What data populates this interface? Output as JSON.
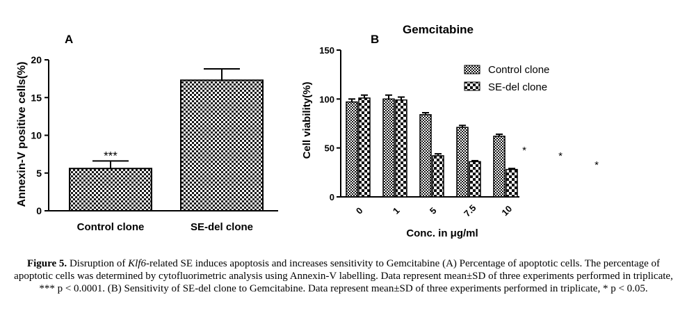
{
  "chart_data": [
    {
      "type": "bar",
      "panel_label": "A",
      "title": "",
      "categories": [
        "Control clone",
        "SE-del clone"
      ],
      "values": [
        5.6,
        17.3
      ],
      "errors": [
        1.0,
        1.5
      ],
      "annotations": [
        {
          "category": "Control clone",
          "text": "***"
        }
      ],
      "xlabel": "",
      "ylabel": "Annexin-V positive cells(%)",
      "ylim": [
        0,
        20
      ],
      "yticks": [
        0,
        5,
        10,
        15,
        20
      ],
      "grid": false,
      "legend": "none"
    },
    {
      "type": "bar",
      "panel_label": "B",
      "title": "Gemcitabine",
      "categories": [
        "0",
        "1",
        "5",
        "7.5",
        "10"
      ],
      "series": [
        {
          "name": "Control clone",
          "values": [
            97,
            100,
            84,
            71,
            62
          ],
          "errors": [
            3,
            4,
            2,
            2,
            2
          ]
        },
        {
          "name": "SE-del clone",
          "values": [
            101,
            99,
            42,
            36,
            28
          ],
          "errors": [
            3,
            3,
            2,
            1,
            1
          ]
        }
      ],
      "annotations": [
        "*",
        "*",
        "*"
      ],
      "xlabel": "Conc. in μg/ml",
      "ylabel": "Cell viability(%)",
      "ylim": [
        0,
        150
      ],
      "yticks": [
        0,
        50,
        100,
        150
      ],
      "grid": false,
      "legend": "top-right"
    }
  ],
  "caption": {
    "fig_label": "Figure 5.",
    "part1": " Disruption of ",
    "gene": "Klf6",
    "part2": "-related SE induces apoptosis and increases sensitivity to Gemcitabine (A) Percentage of apoptotic cells. The percentage of apoptotic cells was determined by cytofluorimetric analysis using Annexin-V labelling. Data represent mean±SD of three experiments performed in triplicate, *** p < 0.0001. (B) Sensitivity of SE-del clone to Gemcitabine. Data represent mean±SD of three experiments performed in triplicate, * p < 0.05."
  }
}
